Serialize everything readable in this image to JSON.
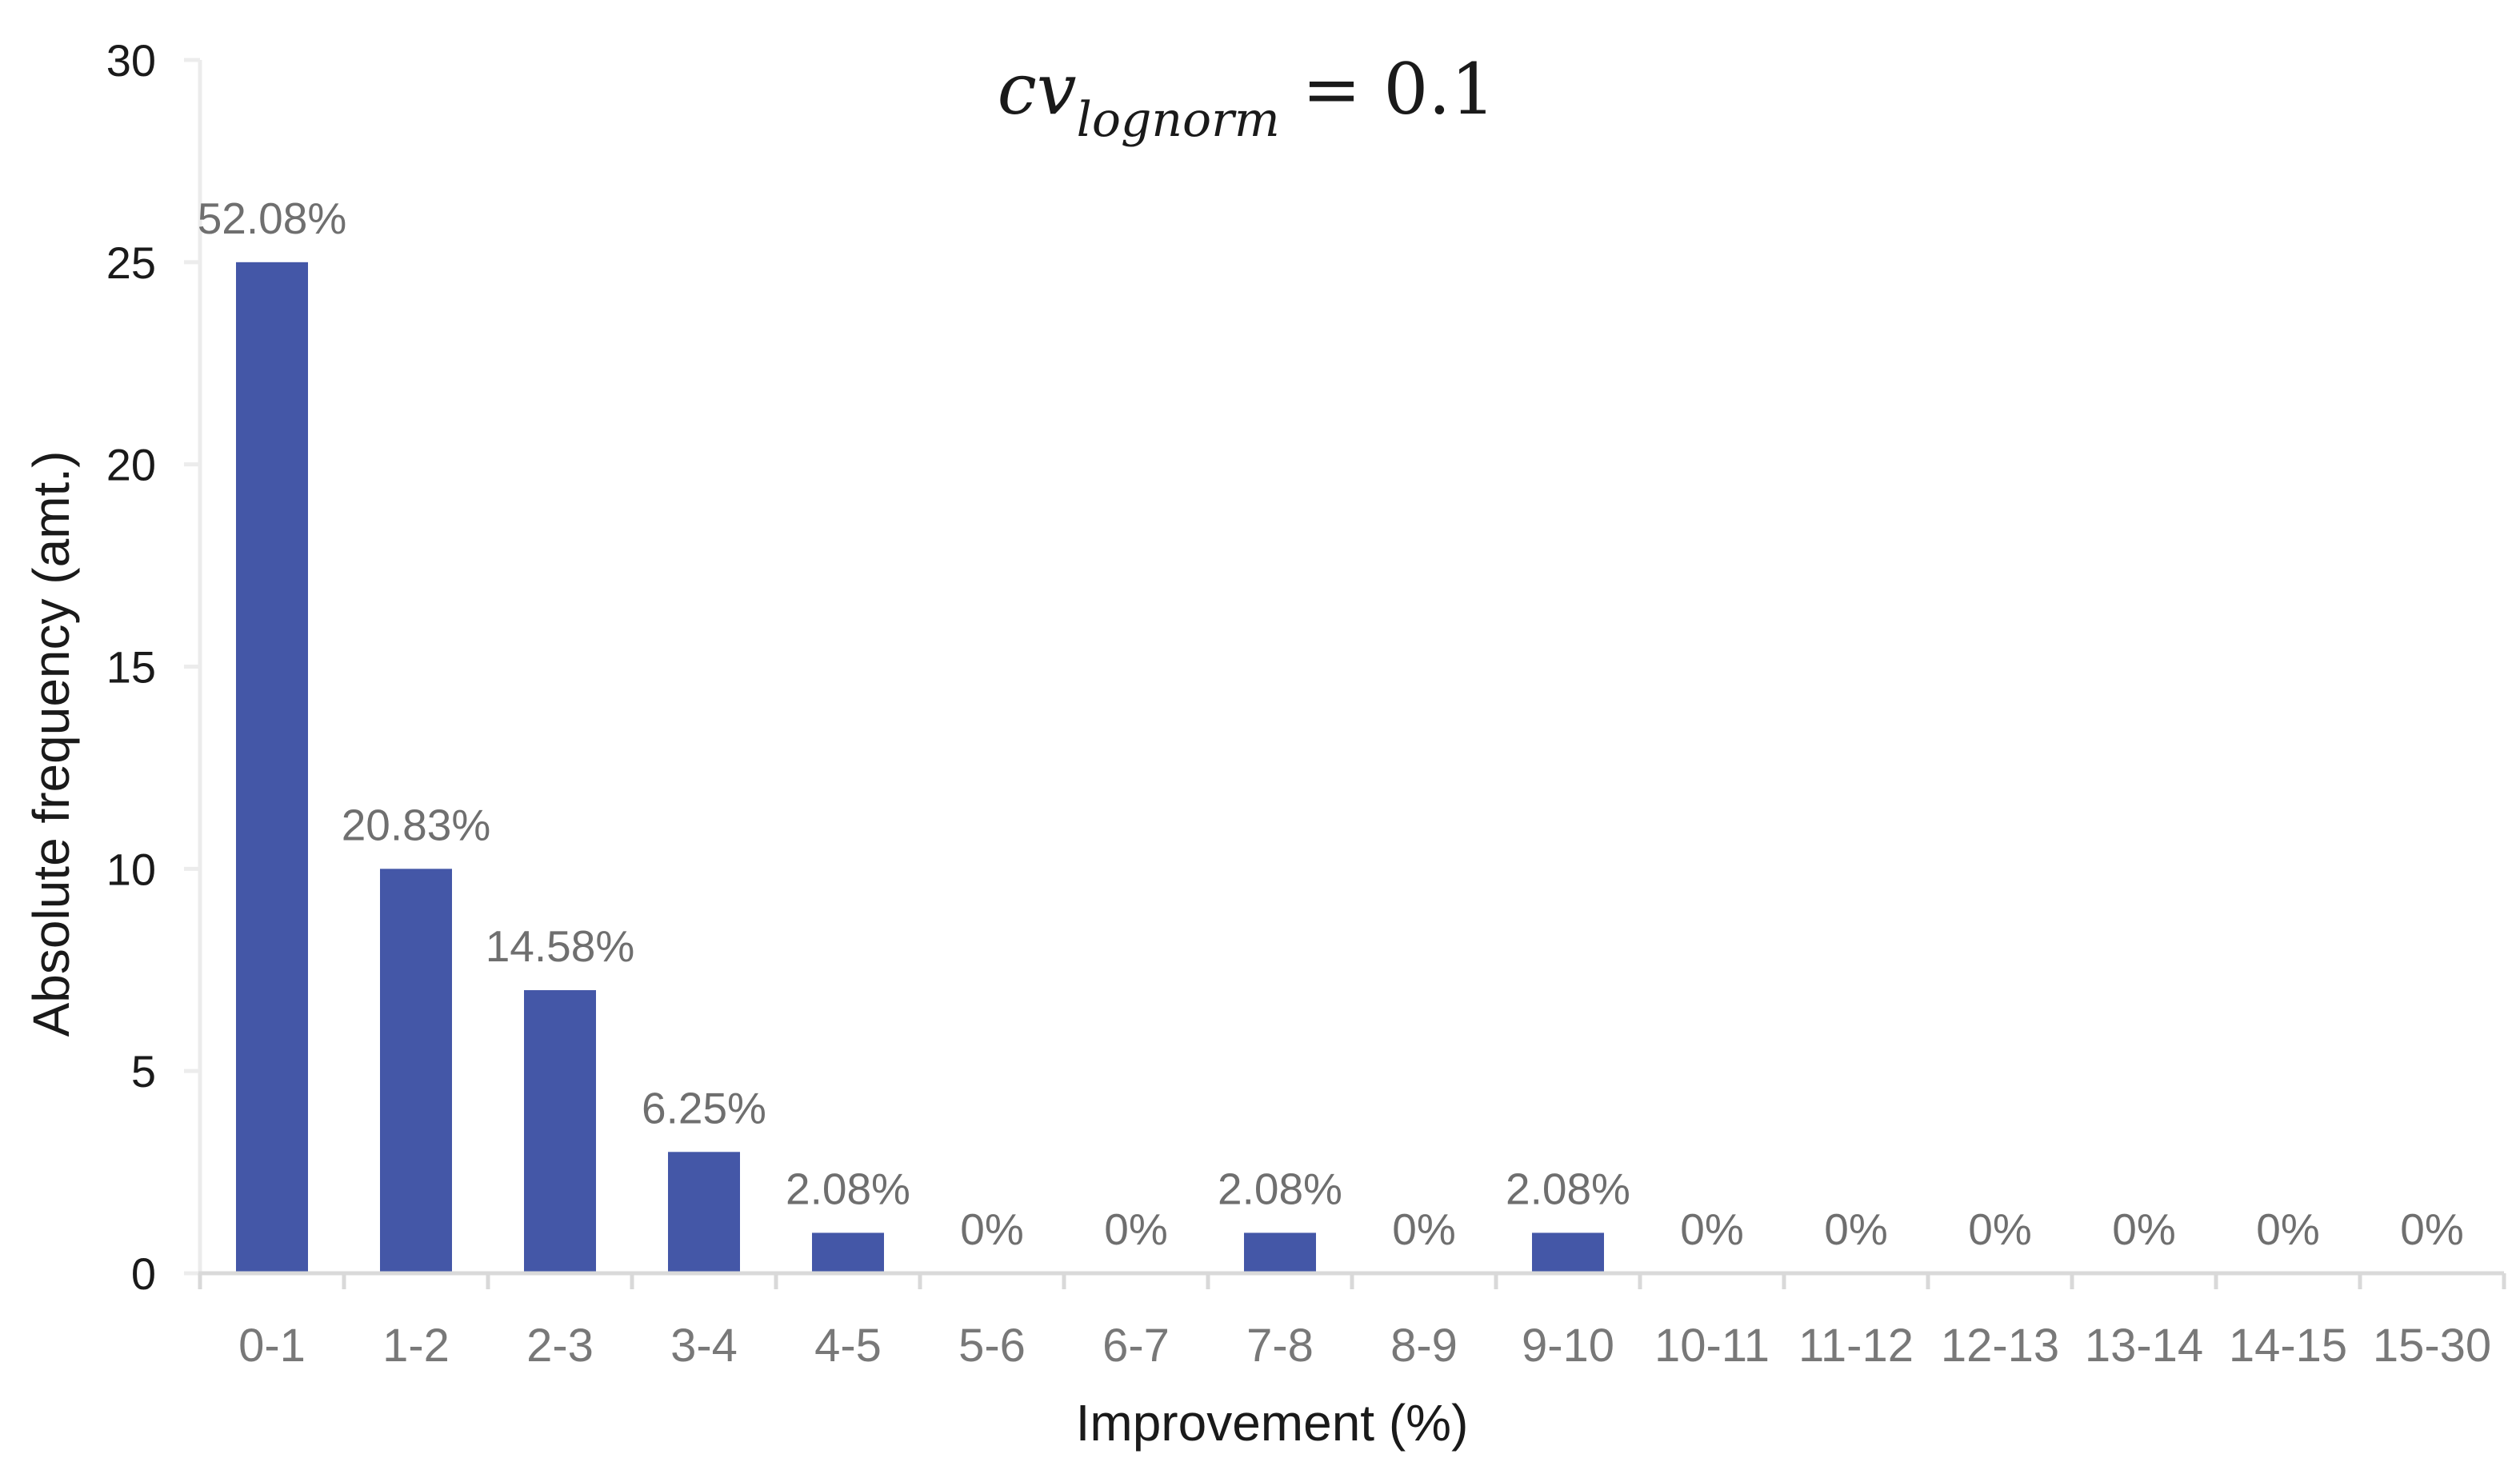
{
  "chart_data": {
    "type": "bar",
    "title": "cv_lognorm = 0.1",
    "title_parts": {
      "variable": "cv",
      "subscript": "lognorm",
      "equals": " = 0.1"
    },
    "categories": [
      "0-1",
      "1-2",
      "2-3",
      "3-4",
      "4-5",
      "5-6",
      "6-7",
      "7-8",
      "8-9",
      "9-10",
      "10-11",
      "11-12",
      "12-13",
      "13-14",
      "14-15",
      "15-30"
    ],
    "values": [
      25,
      10,
      7,
      3,
      1,
      0,
      0,
      1,
      0,
      1,
      0,
      0,
      0,
      0,
      0,
      0
    ],
    "data_labels": [
      "52.08%",
      "20.83%",
      "14.58%",
      "6.25%",
      "2.08%",
      "0%",
      "0%",
      "2.08%",
      "0%",
      "2.08%",
      "0%",
      "0%",
      "0%",
      "0%",
      "0%",
      "0%"
    ],
    "xlabel": "Improvement (%)",
    "ylabel": "Absolute frequency (amt.)",
    "ylim": [
      0,
      30
    ],
    "yticks": [
      0,
      5,
      10,
      15,
      20,
      25,
      30
    ],
    "grid": false,
    "legend": "none"
  },
  "style": {
    "bar_color": "#4457A7",
    "data_label_color": "#6F6F6F",
    "x_tick_label_color": "#787878",
    "y_tick_label_color": "#1A1A1A",
    "x_axis_color": "#D9D9D9",
    "y_axis_color": "#ECECEC",
    "title_color": "#1A1A1A",
    "background_color": "#FFFFFF"
  }
}
